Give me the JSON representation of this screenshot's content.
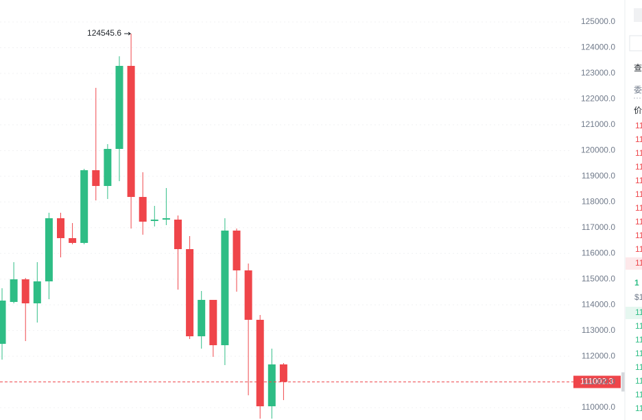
{
  "chart_data": {
    "type": "candlestick",
    "open": [
      112483,
      114112,
      114992,
      114058,
      114912,
      117368,
      116593,
      116407,
      119235,
      118622,
      120063,
      123292,
      118195,
      117260,
      117314,
      117314,
      116166,
      112777,
      114192,
      112430,
      116887,
      115339,
      113417,
      110055,
      111683
    ],
    "high": [
      114645,
      115659,
      115046,
      115659,
      117581,
      117581,
      117180,
      119289,
      122438,
      120250,
      123666,
      124545.6,
      119155,
      117848,
      118542,
      117474,
      116673,
      114538,
      114192,
      117367,
      116967,
      115606,
      113604,
      112296,
      111736
    ],
    "low": [
      111869,
      114058,
      112590,
      113311,
      114218,
      115846,
      116353,
      116353,
      118061,
      118115,
      118808,
      116967,
      116727,
      117047,
      117100,
      114592,
      112670,
      112296,
      111976,
      111656,
      114512,
      110482,
      109574,
      109574,
      110295
    ],
    "close": [
      114165,
      114992,
      114058,
      114912,
      117368,
      116593,
      116407,
      119235,
      118622,
      120063,
      123292,
      118195,
      117234,
      117314,
      117368,
      116166,
      112777,
      114192,
      112430,
      116887,
      115339,
      113417,
      110055,
      111683,
      111002.3
    ],
    "up_color": "#2ebd85",
    "down_color": "#ef454a",
    "high_label": "124545.6",
    "last_price": 111002.3,
    "ylim": [
      109521,
      125854
    ],
    "yticks": [
      {
        "value": 110000,
        "label": "110000.0"
      },
      {
        "value": 111000,
        "label": "111000.0"
      },
      {
        "value": 112000,
        "label": "112000.0"
      },
      {
        "value": 113000,
        "label": "113000.0"
      },
      {
        "value": 114000,
        "label": "114000.0"
      },
      {
        "value": 115000,
        "label": "115000.0"
      },
      {
        "value": 116000,
        "label": "116000.0"
      },
      {
        "value": 117000,
        "label": "117000.0"
      },
      {
        "value": 118000,
        "label": "118000.0"
      },
      {
        "value": 119000,
        "label": "119000.0"
      },
      {
        "value": 120000,
        "label": "120000.0"
      },
      {
        "value": 121000,
        "label": "121000.0"
      },
      {
        "value": 122000,
        "label": "122000.0"
      },
      {
        "value": 123000,
        "label": "123000.0"
      },
      {
        "value": 124000,
        "label": "124000.0"
      },
      {
        "value": 125000,
        "label": "125000.0"
      }
    ],
    "grid": true
  },
  "order_book": {
    "tab": "查",
    "hint": "委",
    "header": "价",
    "asks": [
      "11",
      "11",
      "11",
      "11",
      "11",
      "11",
      "11",
      "11",
      "11",
      "11",
      "11"
    ],
    "mid": "1",
    "mid_usd": "$1",
    "bids": [
      "11",
      "11",
      "11",
      "11",
      "11",
      "11",
      "11",
      "11"
    ]
  }
}
